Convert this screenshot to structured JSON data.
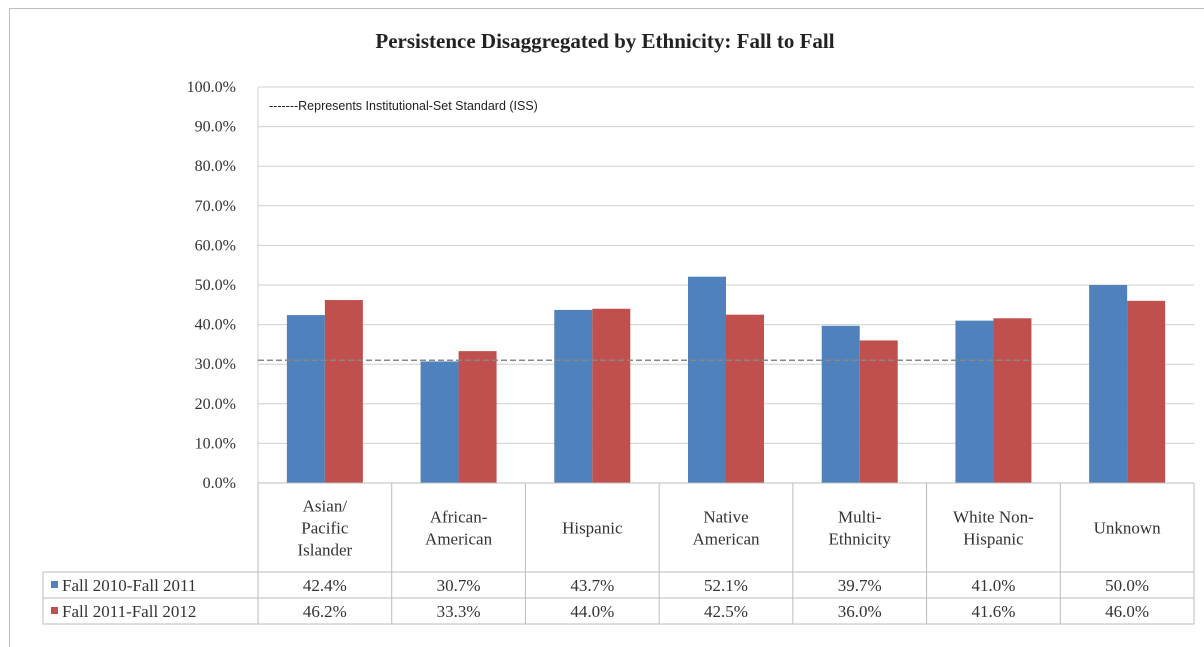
{
  "chart_data": {
    "type": "bar",
    "title": "Persistence Disaggregated by Ethnicity: Fall to Fall",
    "annotation": "-------Represents Institutional-Set Standard (ISS)",
    "categories": [
      [
        "Asian/",
        "Pacific",
        "Islander"
      ],
      [
        "African-",
        "American"
      ],
      [
        "Hispanic"
      ],
      [
        "Native",
        "American"
      ],
      [
        "Multi-",
        "Ethnicity"
      ],
      [
        "White Non-",
        "Hispanic"
      ],
      [
        "Unknown"
      ]
    ],
    "series": [
      {
        "name": "Fall 2010-Fall 2011",
        "color": "#4f81bd",
        "values": [
          42.4,
          30.7,
          43.7,
          52.1,
          39.7,
          41.0,
          50.0
        ],
        "labels": [
          "42.4%",
          "30.7%",
          "43.7%",
          "52.1%",
          "39.7%",
          "41.0%",
          "50.0%"
        ]
      },
      {
        "name": "Fall 2011-Fall 2012",
        "color": "#c0504d",
        "values": [
          46.2,
          33.3,
          44.0,
          42.5,
          36.0,
          41.6,
          46.0
        ],
        "labels": [
          "46.2%",
          "33.3%",
          "44.0%",
          "42.5%",
          "36.0%",
          "41.6%",
          "46.0%"
        ]
      }
    ],
    "ylim": [
      0,
      100
    ],
    "yticks": [
      "0.0%",
      "10.0%",
      "20.0%",
      "30.0%",
      "40.0%",
      "50.0%",
      "60.0%",
      "70.0%",
      "80.0%",
      "90.0%",
      "100.0%"
    ],
    "reference_line": {
      "value": 31.0,
      "style": "dashed",
      "color": "#888888"
    },
    "grid": true,
    "legend": "data-table"
  }
}
